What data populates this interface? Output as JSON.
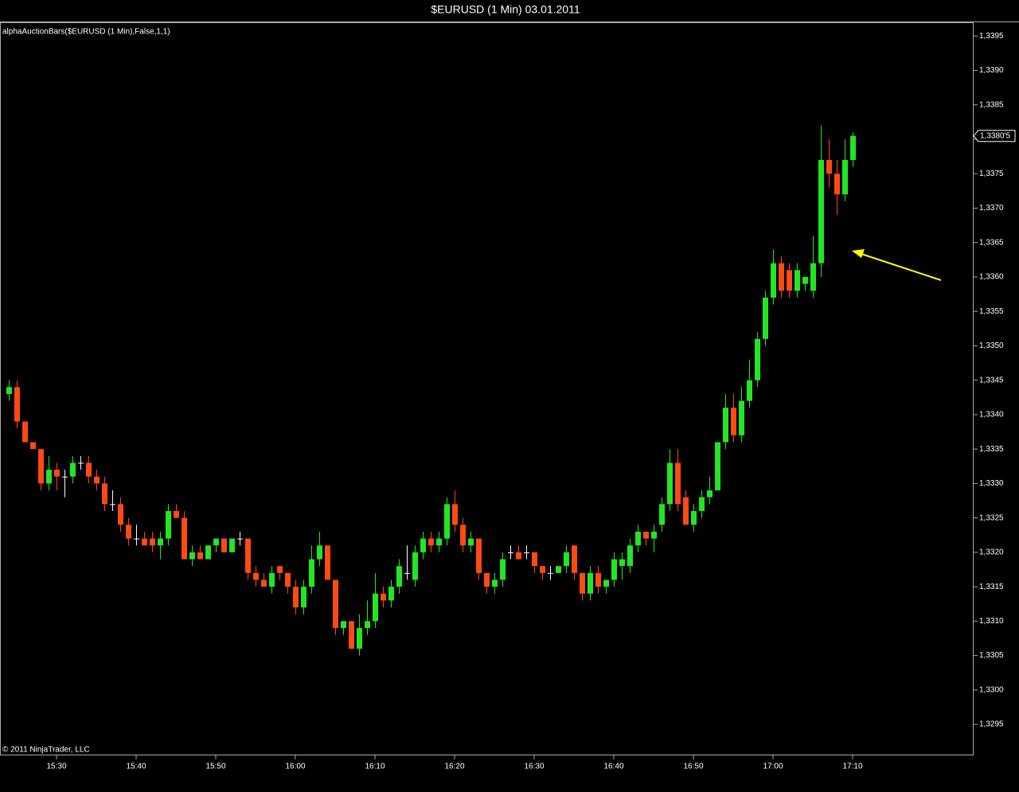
{
  "chart_data": {
    "type": "candlestick",
    "title": "$EURUSD (1 Min)  03.01.2011",
    "indicator_label": "alphaAuctionBars($EURUSD (1 Min),False,1,1)",
    "copyright": "© 2011 NinjaTrader, LLC",
    "up_color": "#22e622",
    "down_color": "#ff4a12",
    "doji_color": "#ffffff",
    "categories": [
      null,
      null,
      null,
      null,
      null,
      null,
      "15:30",
      null,
      null,
      null,
      null,
      null,
      null,
      null,
      null,
      null,
      "15:40",
      null,
      null,
      null,
      null,
      null,
      null,
      null,
      null,
      null,
      "15:50",
      null,
      null,
      null,
      null,
      null,
      null,
      null,
      null,
      null,
      "16:00",
      null,
      null,
      null,
      null,
      null,
      null,
      null,
      null,
      null,
      "16:10",
      null,
      null,
      null,
      null,
      null,
      null,
      null,
      null,
      null,
      "16:20",
      null,
      null,
      null,
      null,
      null,
      null,
      null,
      null,
      null,
      "16:30",
      null,
      null,
      null,
      null,
      null,
      null,
      null,
      null,
      null,
      "16:40",
      null,
      null,
      null,
      null,
      null,
      null,
      null,
      null,
      null,
      "16:50",
      null,
      null,
      null,
      null,
      null,
      null,
      null,
      null,
      null,
      "17:00",
      null,
      null,
      null,
      null,
      null,
      null,
      null,
      null,
      null,
      "17:10"
    ],
    "open": [
      1.3343,
      1.3344,
      1.3339,
      1.3336,
      1.3335,
      1.333,
      1.3332,
      1.3331,
      1.3331,
      1.3333,
      1.3333,
      1.3331,
      1.333,
      1.3327,
      1.3327,
      1.3324,
      1.3322,
      1.3322,
      1.3322,
      1.3321,
      1.3322,
      1.3326,
      1.3325,
      1.3319,
      1.332,
      1.3319,
      1.3321,
      1.3322,
      1.332,
      1.3322,
      1.3322,
      1.3317,
      1.3316,
      1.3315,
      1.3318,
      1.3317,
      1.3315,
      1.3312,
      1.3315,
      1.3319,
      1.3321,
      1.3316,
      1.3309,
      1.331,
      1.3306,
      1.3309,
      1.331,
      1.3314,
      1.3313,
      1.3315,
      1.3317,
      1.3316,
      1.332,
      1.3322,
      1.3321,
      1.3322,
      1.3327,
      1.3324,
      1.3321,
      1.3322,
      1.3317,
      1.3315,
      1.3316,
      1.332,
      1.332,
      1.332,
      1.332,
      1.3318,
      1.3317,
      1.3317,
      1.3318,
      1.3321,
      1.3317,
      1.3314,
      1.3317,
      1.3315,
      1.3316,
      1.3318,
      1.3318,
      1.3321,
      1.3323,
      1.3322,
      1.3324,
      1.3327,
      1.3333,
      1.3328,
      1.3324,
      1.3326,
      1.3328,
      1.3329,
      1.3336,
      1.3341,
      1.3337,
      1.3342,
      1.3345,
      1.3351,
      1.3357,
      1.3362,
      1.3361,
      1.3358,
      1.3359,
      1.3358,
      1.3362,
      1.3377,
      1.3375,
      1.3372,
      1.3377
    ],
    "high": [
      1.3345,
      1.3345,
      1.3339,
      1.3336,
      1.3335,
      1.3334,
      1.3333,
      1.3332,
      1.3334,
      1.3334,
      1.3334,
      1.3332,
      1.3331,
      1.3329,
      1.3328,
      1.3325,
      1.3324,
      1.3323,
      1.3323,
      1.3323,
      1.3327,
      1.3327,
      1.3326,
      1.3321,
      1.3321,
      1.3321,
      1.3322,
      1.3322,
      1.3322,
      1.3323,
      1.3322,
      1.3318,
      1.3317,
      1.3318,
      1.3318,
      1.3317,
      1.3316,
      1.3316,
      1.3321,
      1.3323,
      1.3321,
      1.3316,
      1.331,
      1.331,
      1.3311,
      1.3313,
      1.3317,
      1.3315,
      1.3316,
      1.3319,
      1.3321,
      1.3321,
      1.3323,
      1.3323,
      1.3323,
      1.3328,
      1.3329,
      1.3325,
      1.3323,
      1.3322,
      1.3317,
      1.3317,
      1.332,
      1.3321,
      1.3321,
      1.3321,
      1.332,
      1.3318,
      1.3318,
      1.3318,
      1.3321,
      1.3321,
      1.3317,
      1.3318,
      1.3318,
      1.3316,
      1.332,
      1.332,
      1.3322,
      1.3324,
      1.3323,
      1.3324,
      1.3328,
      1.3335,
      1.3335,
      1.3329,
      1.3327,
      1.3329,
      1.3331,
      1.3336,
      1.3343,
      1.3343,
      1.3344,
      1.3348,
      1.3352,
      1.3358,
      1.3364,
      1.3363,
      1.3362,
      1.3362,
      1.336,
      1.3366,
      1.3382,
      1.338,
      1.3377,
      1.338,
      1.3381
    ],
    "low": [
      1.3342,
      1.3338,
      1.3336,
      1.3335,
      1.3329,
      1.3329,
      1.3329,
      1.3328,
      1.333,
      1.3332,
      1.333,
      1.3329,
      1.3326,
      1.3326,
      1.3323,
      1.3321,
      1.3321,
      1.3321,
      1.332,
      1.3319,
      1.3321,
      1.3325,
      1.3319,
      1.3318,
      1.3319,
      1.3319,
      1.332,
      1.332,
      1.332,
      1.3321,
      1.3316,
      1.3315,
      1.3315,
      1.3314,
      1.3316,
      1.3314,
      1.3311,
      1.3311,
      1.3314,
      1.3318,
      1.3316,
      1.3308,
      1.3308,
      1.3306,
      1.3305,
      1.3308,
      1.3309,
      1.3312,
      1.3312,
      1.3314,
      1.3316,
      1.3315,
      1.3319,
      1.332,
      1.332,
      1.3321,
      1.3323,
      1.332,
      1.332,
      1.3316,
      1.3314,
      1.3314,
      1.3315,
      1.3319,
      1.3319,
      1.3319,
      1.3317,
      1.3316,
      1.3316,
      1.3317,
      1.3317,
      1.3316,
      1.3313,
      1.3313,
      1.3314,
      1.3314,
      1.3315,
      1.3316,
      1.3317,
      1.332,
      1.3321,
      1.332,
      1.3323,
      1.3326,
      1.3326,
      1.3324,
      1.3323,
      1.3325,
      1.3327,
      1.3329,
      1.3335,
      1.3336,
      1.3336,
      1.3341,
      1.3344,
      1.335,
      1.3356,
      1.3357,
      1.3357,
      1.3357,
      1.3358,
      1.3357,
      1.336,
      1.3373,
      1.3369,
      1.3371,
      1.3376
    ],
    "close": [
      1.3344,
      1.3339,
      1.3336,
      1.3335,
      1.333,
      1.3332,
      1.3331,
      1.3331,
      1.3333,
      1.3333,
      1.3331,
      1.333,
      1.3327,
      1.3327,
      1.3324,
      1.3322,
      1.3322,
      1.3321,
      1.3321,
      1.3322,
      1.3326,
      1.3325,
      1.3319,
      1.332,
      1.3319,
      1.3321,
      1.3322,
      1.332,
      1.3322,
      1.3322,
      1.3317,
      1.3316,
      1.3315,
      1.3317,
      1.3317,
      1.3315,
      1.3312,
      1.3315,
      1.3319,
      1.3321,
      1.3316,
      1.3309,
      1.331,
      1.3306,
      1.3309,
      1.331,
      1.3314,
      1.3313,
      1.3315,
      1.3318,
      1.3317,
      1.332,
      1.3322,
      1.3321,
      1.3322,
      1.3327,
      1.3324,
      1.3321,
      1.3322,
      1.3317,
      1.3315,
      1.3316,
      1.3319,
      1.332,
      1.3319,
      1.332,
      1.3318,
      1.3317,
      1.3317,
      1.3318,
      1.332,
      1.3317,
      1.3314,
      1.3317,
      1.3315,
      1.3316,
      1.3319,
      1.3319,
      1.3321,
      1.3323,
      1.3322,
      1.3323,
      1.3327,
      1.3333,
      1.3327,
      1.3324,
      1.3326,
      1.3328,
      1.3329,
      1.3336,
      1.3341,
      1.3337,
      1.3342,
      1.3345,
      1.3351,
      1.3357,
      1.3362,
      1.3358,
      1.3358,
      1.3361,
      1.336,
      1.3362,
      1.3377,
      1.3375,
      1.3372,
      1.3377,
      1.33805
    ],
    "last_price": {
      "value": 1.33805,
      "label": "1,3380'5"
    },
    "ylim": [
      1.32905,
      1.3397
    ],
    "yticks": [
      {
        "value": 1.3295,
        "label": "1,3295"
      },
      {
        "value": 1.33,
        "label": "1,3300"
      },
      {
        "value": 1.3305,
        "label": "1,3305"
      },
      {
        "value": 1.331,
        "label": "1,3310"
      },
      {
        "value": 1.3315,
        "label": "1,3315"
      },
      {
        "value": 1.332,
        "label": "1,3320"
      },
      {
        "value": 1.3325,
        "label": "1,3325"
      },
      {
        "value": 1.333,
        "label": "1,3330"
      },
      {
        "value": 1.3335,
        "label": "1,3335"
      },
      {
        "value": 1.334,
        "label": "1,3340"
      },
      {
        "value": 1.3345,
        "label": "1,3345"
      },
      {
        "value": 1.335,
        "label": "1,3350"
      },
      {
        "value": 1.3355,
        "label": "1,3355"
      },
      {
        "value": 1.336,
        "label": "1,3360"
      },
      {
        "value": 1.3365,
        "label": "1,3365"
      },
      {
        "value": 1.337,
        "label": "1,3370"
      },
      {
        "value": 1.3375,
        "label": "1,3375"
      },
      {
        "value": 1.338,
        "label": "1,3380"
      },
      {
        "value": 1.3385,
        "label": "1,3385"
      },
      {
        "value": 1.339,
        "label": "1,3390"
      },
      {
        "value": 1.3395,
        "label": "1,3395"
      }
    ],
    "grid": false
  }
}
